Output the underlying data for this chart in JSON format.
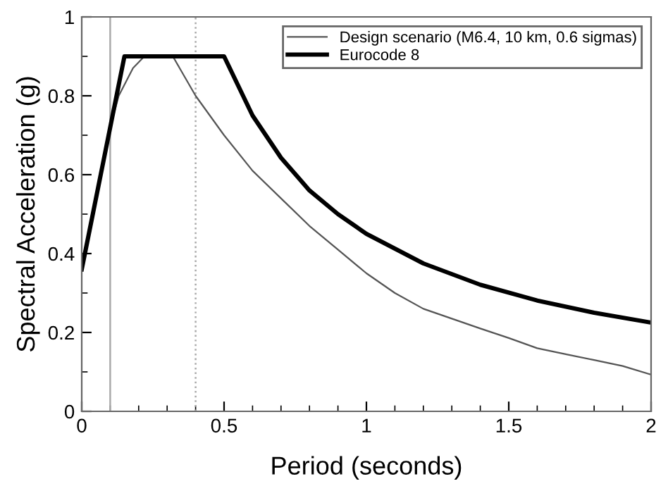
{
  "chart_data": {
    "type": "line",
    "xlabel": "Period (seconds)",
    "ylabel": "Spectral Acceleration (g)",
    "xlim": [
      0,
      2
    ],
    "ylim": [
      0,
      1
    ],
    "xticks": [
      0,
      0.5,
      1,
      1.5,
      2
    ],
    "yticks": [
      0,
      0.2,
      0.4,
      0.6,
      0.8,
      1
    ],
    "grid": false,
    "legend": "top right",
    "marker": "none",
    "ref_lines": [
      {
        "axis": "x",
        "value": 0.1,
        "color": "#aaaaaa",
        "line_style": "solid"
      },
      {
        "axis": "x",
        "value": 0.4,
        "color": "#aaaaaa",
        "line_style": "dotted"
      }
    ],
    "series": [
      {
        "name": "Design scenario (M6.4, 10 km, 0.6 sigmas)",
        "color": "#555555",
        "line_style": "solid",
        "x": [
          0,
          0.05,
          0.1,
          0.13,
          0.18,
          0.22,
          0.32,
          0.36,
          0.4,
          0.45,
          0.5,
          0.6,
          0.7,
          0.8,
          0.9,
          1.0,
          1.1,
          1.2,
          1.3,
          1.4,
          1.5,
          1.6,
          1.7,
          1.8,
          1.9,
          2.0
        ],
        "values": [
          0.36,
          0.54,
          0.72,
          0.8,
          0.87,
          0.9,
          0.9,
          0.85,
          0.8,
          0.75,
          0.7,
          0.61,
          0.54,
          0.47,
          0.41,
          0.35,
          0.3,
          0.26,
          0.235,
          0.21,
          0.186,
          0.16,
          0.145,
          0.13,
          0.115,
          0.093
        ]
      },
      {
        "name": "Eurocode 8",
        "color": "#000000",
        "line_style": "solid",
        "x": [
          0,
          0.15,
          0.5,
          0.6,
          0.7,
          0.8,
          0.9,
          1.0,
          1.2,
          1.4,
          1.6,
          1.8,
          2.0
        ],
        "values": [
          0.36,
          0.9,
          0.9,
          0.75,
          0.643,
          0.56,
          0.5,
          0.45,
          0.375,
          0.321,
          0.281,
          0.25,
          0.225
        ]
      }
    ]
  }
}
